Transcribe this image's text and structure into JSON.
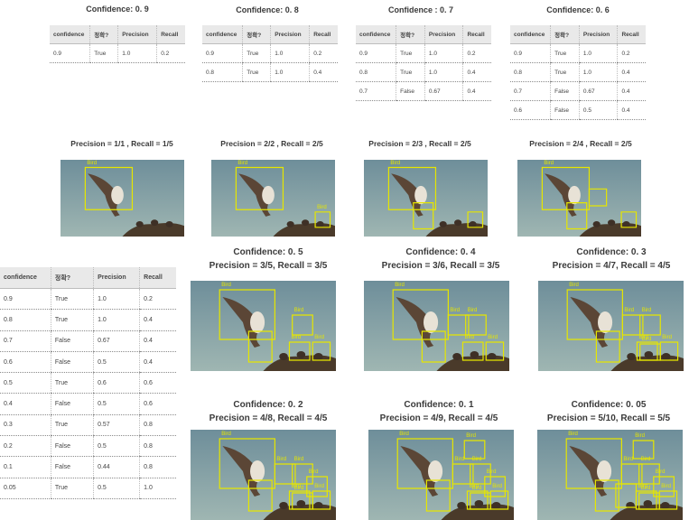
{
  "headers": [
    "confidence",
    "정확?",
    "Precision",
    "Recall"
  ],
  "rows": [
    [
      "0.9",
      "True",
      "1.0",
      "0.2"
    ],
    [
      "0.8",
      "True",
      "1.0",
      "0.4"
    ],
    [
      "0.7",
      "False",
      "0.67",
      "0.4"
    ],
    [
      "0.6",
      "False",
      "0.5",
      "0.4"
    ],
    [
      "0.5",
      "True",
      "0.6",
      "0.6"
    ],
    [
      "0.4",
      "False",
      "0.5",
      "0.6"
    ],
    [
      "0.3",
      "True",
      "0.57",
      "0.8"
    ],
    [
      "0.2",
      "False",
      "0.5",
      "0.8"
    ],
    [
      "0.1",
      "False",
      "0.44",
      "0.8"
    ],
    [
      "0.05",
      "True",
      "0.5",
      "1.0"
    ]
  ],
  "top_tables": [
    {
      "title": "Confidence: 0. 9",
      "row_count": 1
    },
    {
      "title": "Confidence: 0. 8",
      "row_count": 2
    },
    {
      "title": "Confidence : 0. 7",
      "row_count": 3
    },
    {
      "title": "Confidence: 0. 6",
      "row_count": 4
    }
  ],
  "middle_panels": [
    {
      "title": "Precision = 1/1 , Recall = 1/5"
    },
    {
      "title": "Precision = 2/2 , Recall = 2/5"
    },
    {
      "title": "Precision = 2/3 , Recall = 2/5"
    },
    {
      "title": "Precision = 2/4 , Recall = 2/5"
    }
  ],
  "bottom_panels": [
    {
      "conf": "Confidence: 0. 5",
      "pr": "Precision = 3/5, Recall = 3/5"
    },
    {
      "conf": "Confidence: 0. 4",
      "pr": "Precision = 3/6, Recall = 3/5"
    },
    {
      "conf": "Confidence: 0. 3",
      "pr": "Precision = 4/7, Recall = 4/5"
    },
    {
      "conf": "Confidence: 0. 2",
      "pr": "Precision = 4/8, Recall = 4/5"
    },
    {
      "conf": "Confidence: 0. 1",
      "pr": "Precision = 4/9, Recall = 4/5"
    },
    {
      "conf": "Confidence: 0. 05",
      "pr": "Precision = 5/10, Recall = 5/5"
    }
  ],
  "box_label": "Bird",
  "colors": {
    "box": "#e6e600",
    "sky_top": "#6e8e9a",
    "sky_bottom": "#9fb6b2",
    "nest": "#4a3a2a"
  }
}
